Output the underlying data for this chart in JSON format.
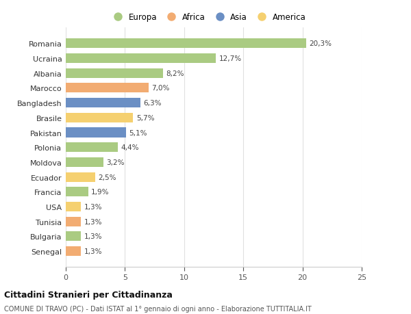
{
  "categories": [
    "Romania",
    "Ucraina",
    "Albania",
    "Marocco",
    "Bangladesh",
    "Brasile",
    "Pakistan",
    "Polonia",
    "Moldova",
    "Ecuador",
    "Francia",
    "USA",
    "Tunisia",
    "Bulgaria",
    "Senegal"
  ],
  "values": [
    20.3,
    12.7,
    8.2,
    7.0,
    6.3,
    5.7,
    5.1,
    4.4,
    3.2,
    2.5,
    1.9,
    1.3,
    1.3,
    1.3,
    1.3
  ],
  "labels": [
    "20,3%",
    "12,7%",
    "8,2%",
    "7,0%",
    "6,3%",
    "5,7%",
    "5,1%",
    "4,4%",
    "3,2%",
    "2,5%",
    "1,9%",
    "1,3%",
    "1,3%",
    "1,3%",
    "1,3%"
  ],
  "continents": [
    "Europa",
    "Europa",
    "Europa",
    "Africa",
    "Asia",
    "America",
    "Asia",
    "Europa",
    "Europa",
    "America",
    "Europa",
    "America",
    "Africa",
    "Europa",
    "Africa"
  ],
  "continent_colors": {
    "Europa": "#aacb82",
    "Africa": "#f2ac72",
    "Asia": "#6b8fc4",
    "America": "#f5d070"
  },
  "legend_order": [
    "Europa",
    "Africa",
    "Asia",
    "America"
  ],
  "title": "Cittadini Stranieri per Cittadinanza",
  "subtitle": "COMUNE DI TRAVO (PC) - Dati ISTAT al 1° gennaio di ogni anno - Elaborazione TUTTITALIA.IT",
  "xlim": [
    0,
    25
  ],
  "xticks": [
    0,
    5,
    10,
    15,
    20,
    25
  ],
  "background_color": "#ffffff",
  "bar_height": 0.65,
  "figsize": [
    6.0,
    4.6
  ],
  "dpi": 100
}
